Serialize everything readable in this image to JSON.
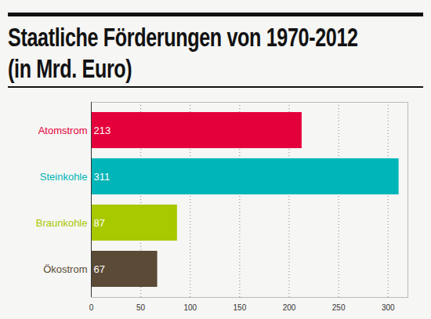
{
  "chart_data": {
    "type": "bar",
    "title": "Staatliche Förderungen von 1970-2012",
    "subtitle": "(in Mrd. Euro)",
    "orientation": "horizontal",
    "categories": [
      "Atomstrom",
      "Steinkohle",
      "Braunkohle",
      "Ökostrom"
    ],
    "values": [
      213,
      311,
      87,
      67
    ],
    "colors": [
      "#e4003b",
      "#00b5b8",
      "#a8c800",
      "#5a4a36"
    ],
    "xlim": [
      0,
      320
    ],
    "xticks": [
      0,
      50,
      100,
      150,
      200,
      250,
      300
    ],
    "grid": true,
    "data_labels": true
  }
}
